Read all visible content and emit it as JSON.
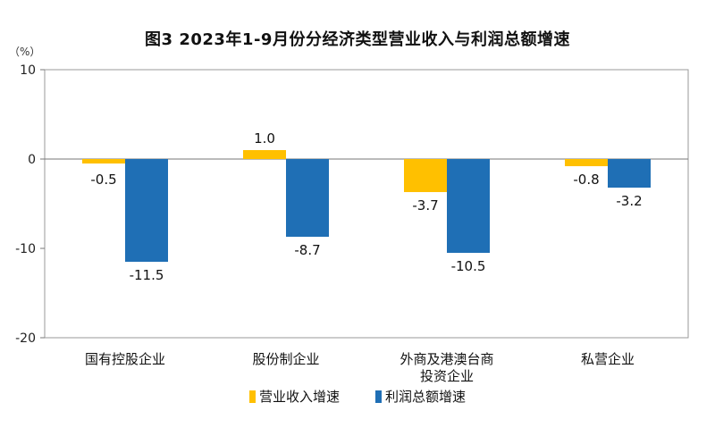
{
  "chart_data": {
    "type": "bar",
    "title": "图3  2023年1-9月份分经济类型营业收入与利润总额增速",
    "unit_label": "（%）",
    "categories": [
      "国有控股企业",
      "股份制企业",
      "外商及港澳台商投资企业",
      "私营企业"
    ],
    "category_lines": [
      [
        "国有控股企业"
      ],
      [
        "股份制企业"
      ],
      [
        "外商及港澳台商",
        "投资企业"
      ],
      [
        "私营企业"
      ]
    ],
    "series": [
      {
        "name": "营业收入增速",
        "values": [
          -0.5,
          1.0,
          -3.7,
          -0.8
        ],
        "labels": [
          "-0.5",
          "1.0",
          "-3.7",
          "-0.8"
        ],
        "color": "#FFC000"
      },
      {
        "name": "利润总额增速",
        "values": [
          -11.5,
          -8.7,
          -10.5,
          -3.2
        ],
        "labels": [
          "-11.5",
          "-8.7",
          "-10.5",
          "-3.2"
        ],
        "color": "#1F6FB5"
      }
    ],
    "ylim": [
      -20,
      10
    ],
    "yticks": [
      10,
      0,
      -10,
      -20
    ],
    "ytick_labels": [
      "10",
      "0",
      "-10",
      "-20"
    ],
    "legend_position": "bottom",
    "grid": false
  }
}
